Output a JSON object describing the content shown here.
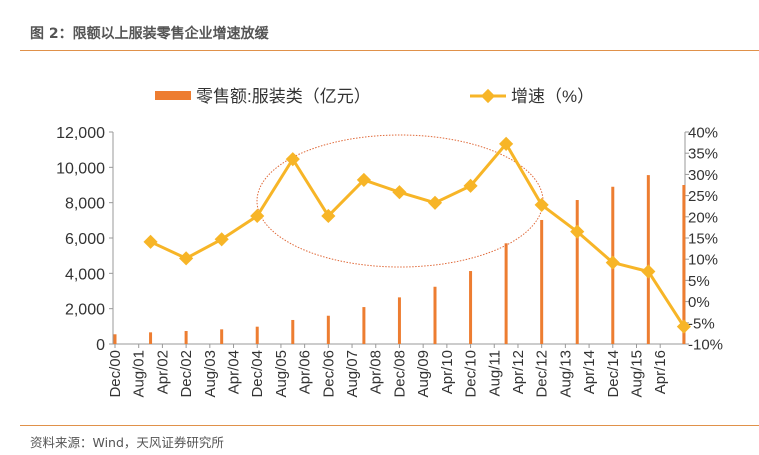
{
  "header": {
    "title": "图 2：限额以上服装零售企业增速放缓"
  },
  "footer": {
    "source": "资料来源：Wind，天风证券研究所"
  },
  "colors": {
    "bar": "#ED7D31",
    "line": "#F7B527",
    "annotation": "#E06A3A",
    "rule": "#E0914A"
  },
  "chart_data": {
    "type": "bar+line",
    "title": "",
    "x_tick_labels": [
      "Dec/00",
      "Aug/01",
      "Apr/02",
      "Dec/02",
      "Aug/03",
      "Apr/04",
      "Dec/04",
      "Aug/05",
      "Apr/06",
      "Dec/06",
      "Aug/07",
      "Apr/08",
      "Dec/08",
      "Aug/09",
      "Apr/10",
      "Dec/10",
      "Aug/11",
      "Apr/12",
      "Dec/12",
      "Aug/13",
      "Apr/14",
      "Dec/14",
      "Aug/15",
      "Apr/16"
    ],
    "left_axis": {
      "ylim": [
        0,
        12000
      ],
      "ticks": [
        "0",
        "2,000",
        "4,000",
        "6,000",
        "8,000",
        "10,000",
        "12,000"
      ]
    },
    "right_axis": {
      "ylim": [
        -10,
        40
      ],
      "ticks": [
        "-10%",
        "-5%",
        "0%",
        "5%",
        "10%",
        "15%",
        "20%",
        "25%",
        "30%",
        "35%",
        "40%"
      ]
    },
    "legend_position": "top",
    "grid": false,
    "series": [
      {
        "name": "零售额:服装类（亿元）",
        "type": "bar",
        "axis": "left",
        "x": [
          "Dec/00",
          "Dec/01",
          "Dec/02",
          "Dec/03",
          "Dec/04",
          "Dec/05",
          "Dec/06",
          "Dec/07",
          "Dec/08",
          "Dec/09",
          "Dec/10",
          "Dec/11",
          "Dec/12",
          "Dec/13",
          "Dec/14",
          "Dec/15",
          "Dec/16"
        ],
        "values": [
          550,
          660,
          735,
          830,
          980,
          1360,
          1600,
          2090,
          2640,
          3240,
          4130,
          5700,
          7020,
          8150,
          8900,
          9560,
          9000
        ]
      },
      {
        "name": "增速（%）",
        "type": "line",
        "axis": "right",
        "x": [
          "Dec/01",
          "Dec/02",
          "Dec/03",
          "Dec/04",
          "Dec/05",
          "Dec/06",
          "Dec/07",
          "Dec/08",
          "Dec/09",
          "Dec/10",
          "Dec/11",
          "Dec/12",
          "Dec/13",
          "Dec/14",
          "Dec/15",
          "Dec/16"
        ],
        "values": [
          14.1,
          10.2,
          14.7,
          20.2,
          33.6,
          20.2,
          28.7,
          25.8,
          23.3,
          27.3,
          37.2,
          22.8,
          16.5,
          9.2,
          7.1,
          -5.9
        ]
      }
    ]
  }
}
